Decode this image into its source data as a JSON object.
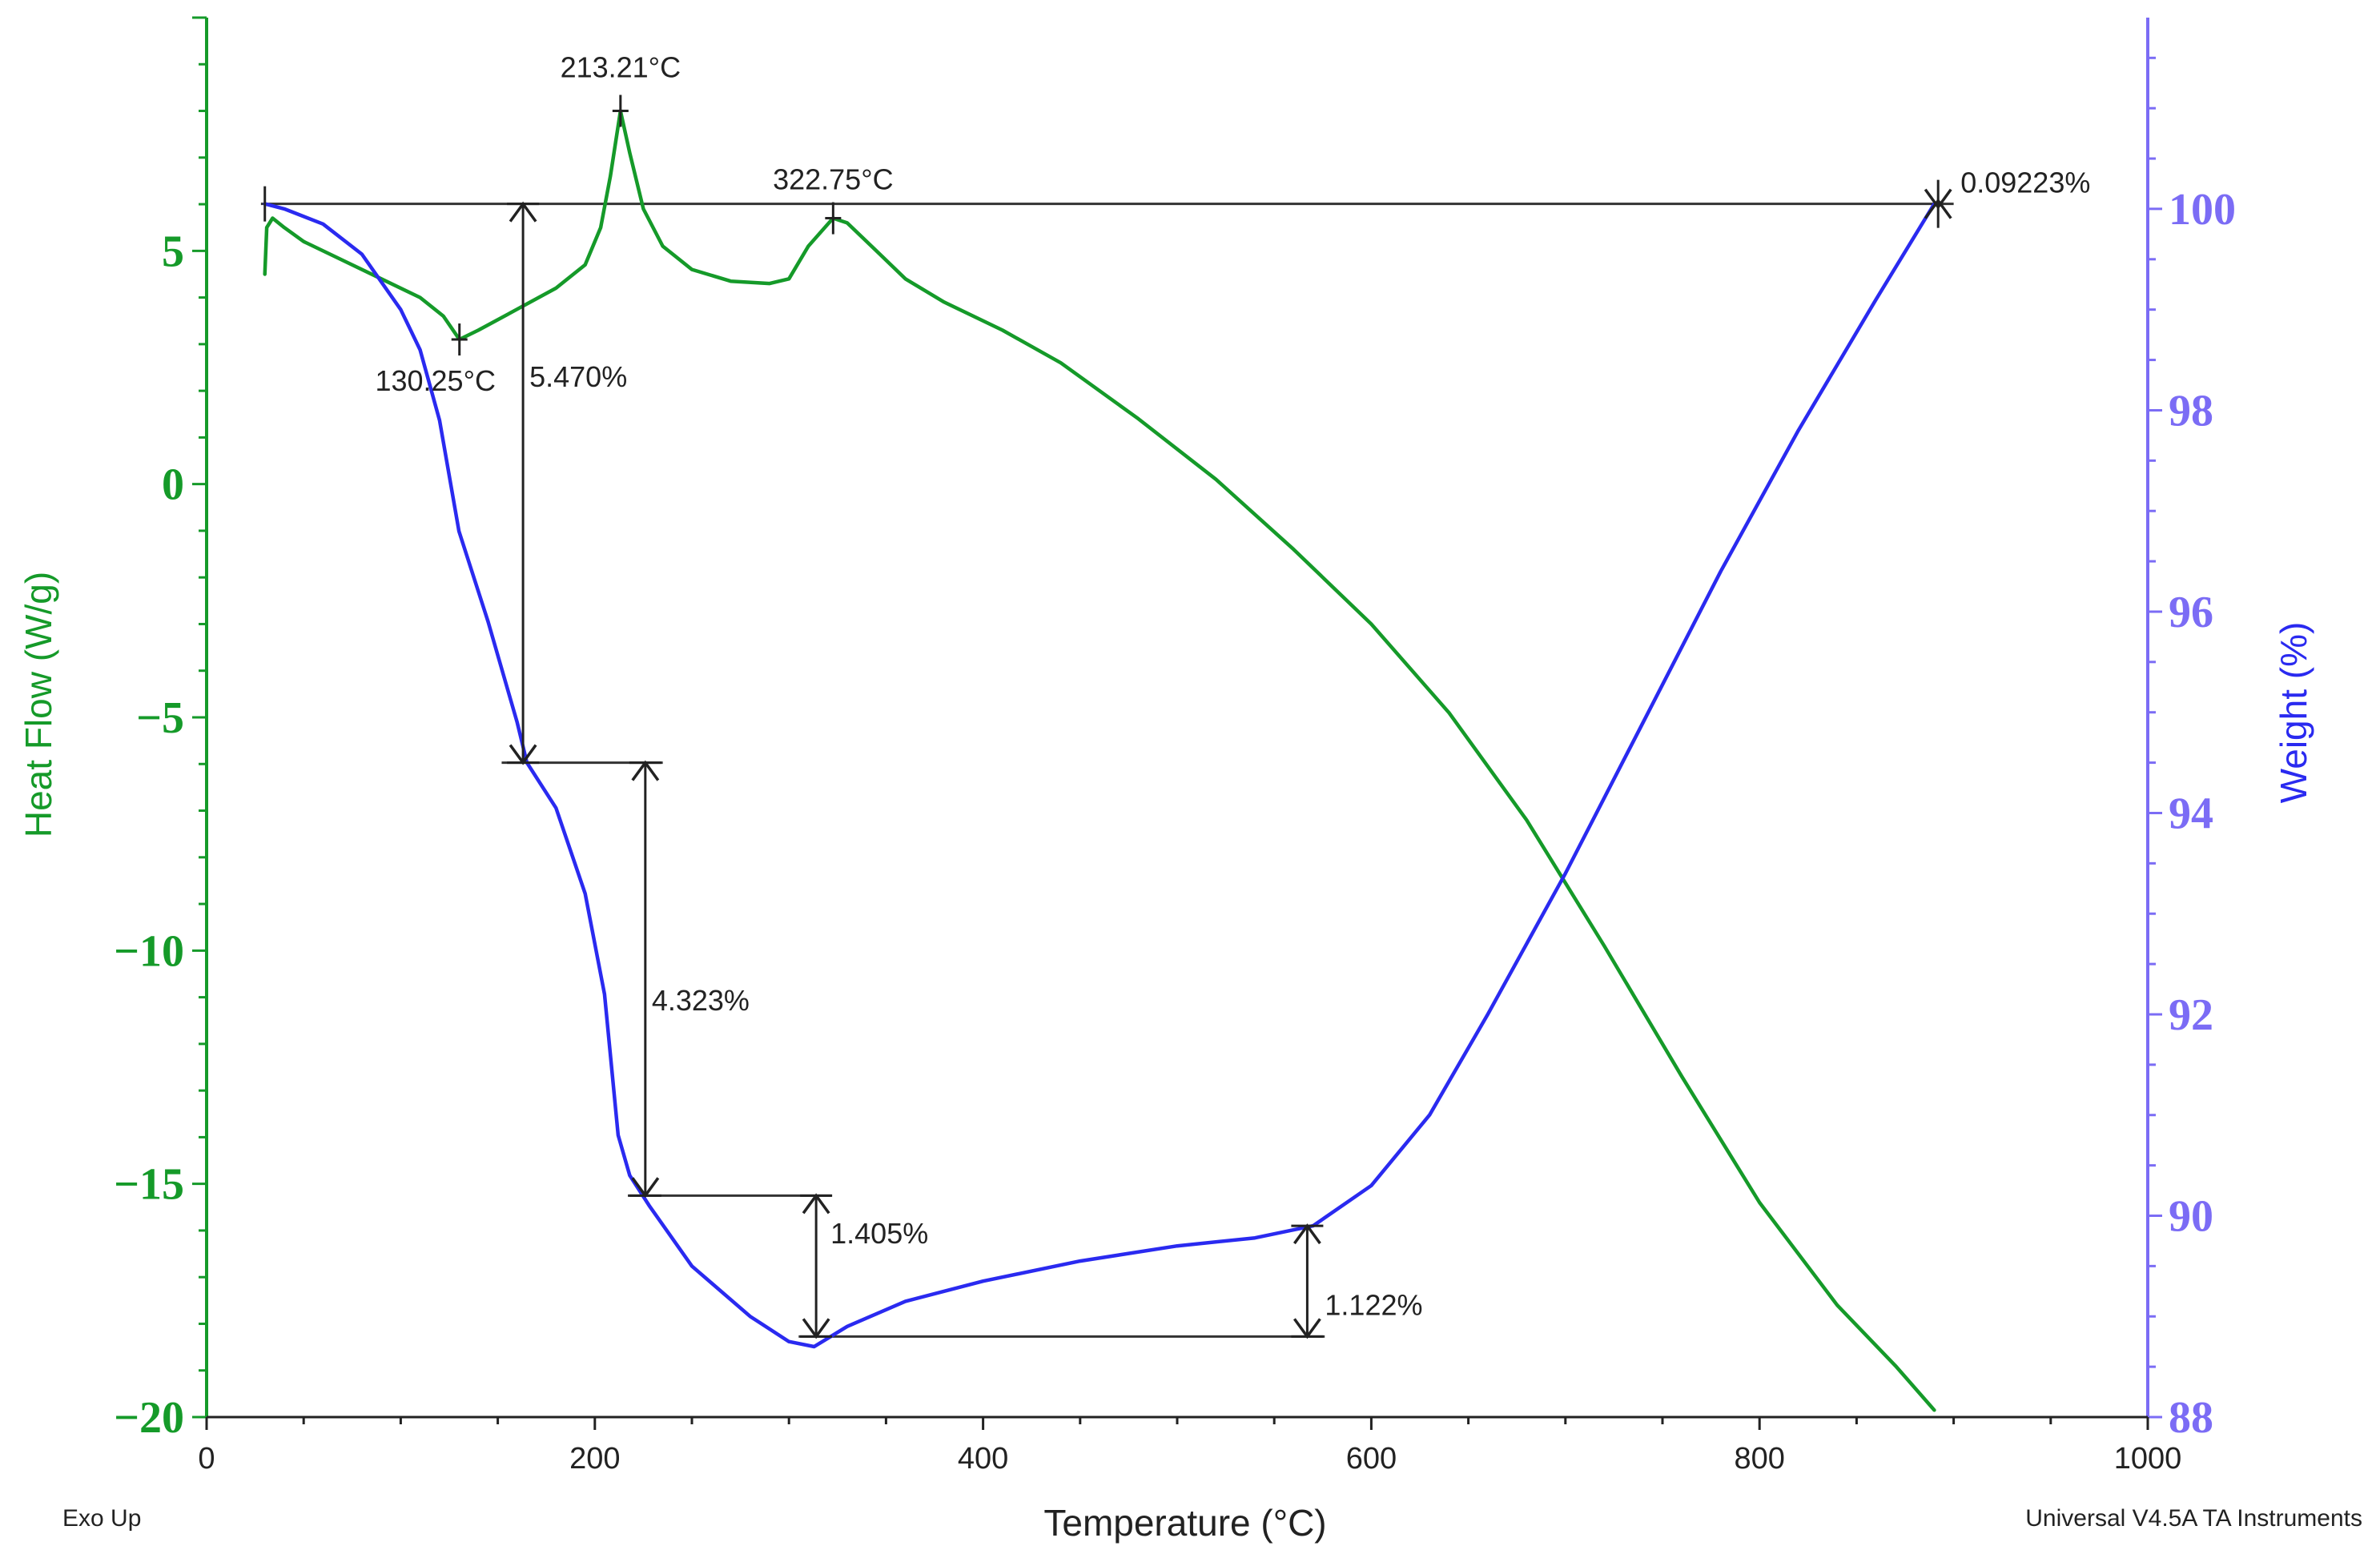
{
  "chart_data": {
    "type": "line",
    "x": {
      "label": "Temperature (°C)",
      "range": [
        0,
        1000
      ],
      "ticks": [
        0,
        200,
        400,
        600,
        800,
        1000
      ],
      "tick_labels": [
        "0",
        "200",
        "400",
        "600",
        "800",
        "1000"
      ]
    },
    "y_left": {
      "label": "Heat Flow (W/g)",
      "range": [
        -20,
        10
      ],
      "ticks": [
        5,
        0,
        -5,
        -10,
        -15,
        -20
      ],
      "tick_labels": [
        "5",
        "0",
        "−5",
        "−10",
        "−15",
        "−20"
      ],
      "color": "#159a29"
    },
    "y_right": {
      "label": "Weight (%)",
      "range": [
        88,
        101.9
      ],
      "ticks": [
        100,
        98,
        96,
        94,
        92,
        90,
        88
      ],
      "tick_labels": [
        "100",
        "98",
        "96",
        "94",
        "92",
        "90",
        "88"
      ],
      "color": "#7b6cf5"
    },
    "series": [
      {
        "name": "Heat Flow",
        "axis": "left",
        "color": "#159a29",
        "points": [
          [
            30,
            4.5
          ],
          [
            31,
            5.5
          ],
          [
            34,
            5.7
          ],
          [
            40,
            5.5
          ],
          [
            50,
            5.2
          ],
          [
            70,
            4.8
          ],
          [
            90,
            4.4
          ],
          [
            110,
            4.0
          ],
          [
            122,
            3.6
          ],
          [
            130.25,
            3.1
          ],
          [
            140,
            3.3
          ],
          [
            160,
            3.75
          ],
          [
            180,
            4.2
          ],
          [
            195,
            4.7
          ],
          [
            203,
            5.5
          ],
          [
            208,
            6.6
          ],
          [
            213.21,
            8.0
          ],
          [
            218,
            7.1
          ],
          [
            225,
            5.9
          ],
          [
            235,
            5.1
          ],
          [
            250,
            4.6
          ],
          [
            270,
            4.35
          ],
          [
            290,
            4.3
          ],
          [
            300,
            4.4
          ],
          [
            310,
            5.1
          ],
          [
            322.75,
            5.7
          ],
          [
            330,
            5.6
          ],
          [
            345,
            5.0
          ],
          [
            360,
            4.4
          ],
          [
            380,
            3.9
          ],
          [
            410,
            3.3
          ],
          [
            440,
            2.6
          ],
          [
            480,
            1.4
          ],
          [
            520,
            0.1
          ],
          [
            560,
            -1.4
          ],
          [
            600,
            -3.0
          ],
          [
            640,
            -4.9
          ],
          [
            680,
            -7.2
          ],
          [
            720,
            -9.9
          ],
          [
            760,
            -12.7
          ],
          [
            800,
            -15.4
          ],
          [
            840,
            -17.6
          ],
          [
            870,
            -18.9
          ],
          [
            890,
            -19.85
          ]
        ]
      },
      {
        "name": "Weight",
        "axis": "right",
        "color": "#2a2af0",
        "points": [
          [
            30,
            100.05
          ],
          [
            40,
            100.0
          ],
          [
            60,
            99.85
          ],
          [
            80,
            99.55
          ],
          [
            100,
            99.0
          ],
          [
            110,
            98.6
          ],
          [
            120,
            97.9
          ],
          [
            130,
            96.8
          ],
          [
            145,
            95.9
          ],
          [
            160,
            94.9
          ],
          [
            165,
            94.5
          ],
          [
            180,
            94.05
          ],
          [
            195,
            93.2
          ],
          [
            205,
            92.2
          ],
          [
            212,
            90.8
          ],
          [
            218,
            90.4
          ],
          [
            228,
            90.1
          ],
          [
            250,
            89.5
          ],
          [
            280,
            89.0
          ],
          [
            300,
            88.75
          ],
          [
            313,
            88.7
          ],
          [
            330,
            88.9
          ],
          [
            360,
            89.15
          ],
          [
            400,
            89.35
          ],
          [
            450,
            89.55
          ],
          [
            500,
            89.7
          ],
          [
            540,
            89.78
          ],
          [
            570,
            89.9
          ],
          [
            600,
            90.3
          ],
          [
            630,
            91.0
          ],
          [
            660,
            92.0
          ],
          [
            700,
            93.4
          ],
          [
            740,
            94.9
          ],
          [
            780,
            96.4
          ],
          [
            820,
            97.8
          ],
          [
            860,
            99.1
          ],
          [
            890,
            100.05
          ]
        ]
      }
    ],
    "annotations": {
      "peaks": [
        {
          "label": "213.21°C",
          "x": 213.21,
          "y": 8.0
        },
        {
          "label": "322.75°C",
          "x": 322.75,
          "y": 5.7
        },
        {
          "label": "130.25°C",
          "x": 130.25,
          "y": 3.1
        }
      ],
      "weight_steps": [
        {
          "label": "5.470%",
          "x": 163,
          "from": 100.05,
          "to": 94.5
        },
        {
          "label": "4.323%",
          "x": 226,
          "from": 94.5,
          "to": 90.2
        },
        {
          "label": "1.405%",
          "x": 314,
          "from": 90.2,
          "to": 88.8
        },
        {
          "label": "1.122%",
          "x": 567,
          "from": 88.8,
          "to": 89.9
        },
        {
          "label": "0.09223%",
          "x": 892,
          "from": 100.05,
          "to": 100.05
        }
      ],
      "reference_levels": [
        {
          "y": 100.05,
          "x_from": 28,
          "x_to": 900
        },
        {
          "y": 94.5,
          "x_from": 152,
          "x_to": 235
        },
        {
          "y": 90.2,
          "x_from": 217,
          "x_to": 322
        },
        {
          "y": 88.8,
          "x_from": 305,
          "x_to": 576
        }
      ]
    },
    "footer_left": "Exo Up",
    "footer_right": "Universal V4.5A TA Instruments"
  }
}
